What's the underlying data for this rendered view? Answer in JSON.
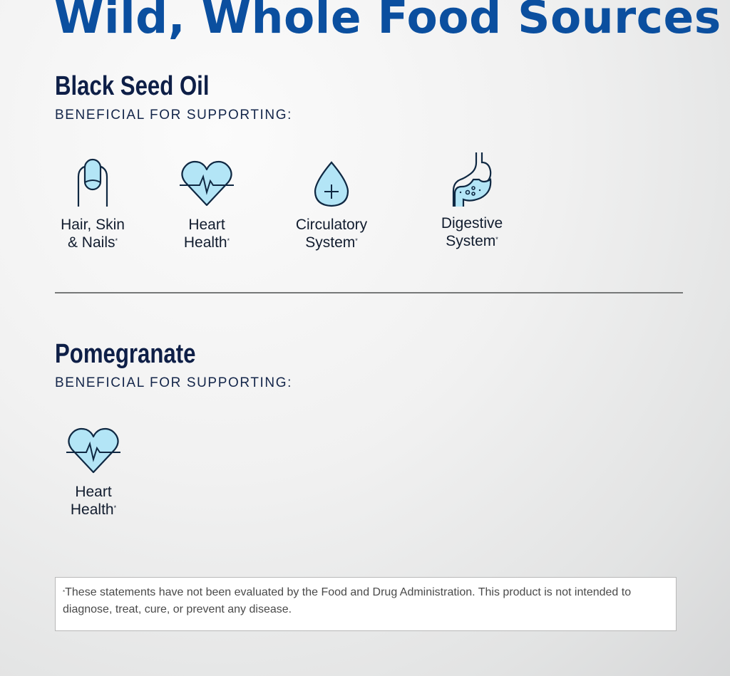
{
  "title": "Wild, Whole Food Sources",
  "colors": {
    "title": "#0b4f9f",
    "heading": "#0e1f47",
    "icon_fill": "#b3e5f6",
    "icon_stroke": "#0f2842"
  },
  "sections": [
    {
      "name": "Black Seed Oil",
      "subtitle": "BENEFICIAL FOR SUPPORTING:",
      "benefits": [
        {
          "icon": "fingernail-icon",
          "line1": "Hair, Skin",
          "line2": "& Nails",
          "mark": "*"
        },
        {
          "icon": "heartbeat-icon",
          "line1": "Heart",
          "line2": "Health",
          "mark": "*"
        },
        {
          "icon": "blood-drop-plus-icon",
          "line1": "Circulatory",
          "line2": "System",
          "mark": "*"
        },
        {
          "icon": "stomach-icon",
          "line1": "Digestive",
          "line2": "System",
          "mark": "*"
        }
      ]
    },
    {
      "name": "Pomegranate",
      "subtitle": "BENEFICIAL FOR SUPPORTING:",
      "benefits": [
        {
          "icon": "heartbeat-icon",
          "line1": "Heart",
          "line2": "Health",
          "mark": "*"
        }
      ]
    }
  ],
  "disclaimer": {
    "mark": "*",
    "text": "These statements have not been evaluated by the Food and Drug Administration. This product is not intended to diagnose, treat, cure, or prevent any disease."
  }
}
